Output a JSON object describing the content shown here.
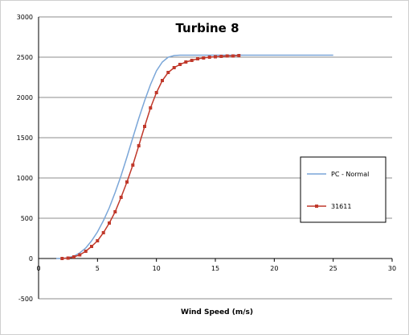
{
  "chart_data": {
    "type": "scatter",
    "title": "Turbine 8",
    "xlabel": "Wind Speed (m/s)",
    "ylabel": "",
    "xlim": [
      0,
      30
    ],
    "ylim": [
      -500,
      3000
    ],
    "xticks": [
      0,
      5,
      10,
      15,
      20,
      25,
      30
    ],
    "yticks": [
      -500,
      0,
      500,
      1000,
      1500,
      2000,
      2500,
      3000
    ],
    "grid": true,
    "legend_position": "right",
    "series": [
      {
        "name": "PC - Normal",
        "kind": "line",
        "color": "#7aa6d8",
        "x": [
          1.5,
          2,
          2.5,
          3,
          3.5,
          4,
          4.5,
          5,
          5.5,
          6,
          6.5,
          7,
          7.5,
          8,
          8.5,
          9,
          9.5,
          10,
          10.5,
          11,
          11.5,
          12,
          12.5,
          13,
          14,
          15,
          17,
          20,
          25
        ],
        "y": [
          0,
          0,
          10,
          30,
          70,
          130,
          220,
          330,
          470,
          630,
          820,
          1030,
          1260,
          1500,
          1740,
          1960,
          2160,
          2330,
          2440,
          2500,
          2520,
          2525,
          2525,
          2525,
          2525,
          2525,
          2525,
          2525,
          2525
        ]
      },
      {
        "name": "31611",
        "kind": "line-marker",
        "color": "#c0392b",
        "x": [
          2,
          2.5,
          3,
          3.5,
          4,
          4.5,
          5,
          5.5,
          6,
          6.5,
          7,
          7.5,
          8,
          8.5,
          9,
          9.5,
          10,
          10.5,
          11,
          11.5,
          12,
          12.5,
          13,
          13.5,
          14,
          14.5,
          15,
          15.5,
          16,
          16.5,
          17
        ],
        "y": [
          0,
          5,
          20,
          45,
          90,
          150,
          220,
          320,
          440,
          580,
          760,
          950,
          1160,
          1400,
          1640,
          1870,
          2060,
          2210,
          2310,
          2370,
          2410,
          2440,
          2460,
          2480,
          2490,
          2500,
          2505,
          2510,
          2515,
          2515,
          2520
        ]
      }
    ]
  }
}
